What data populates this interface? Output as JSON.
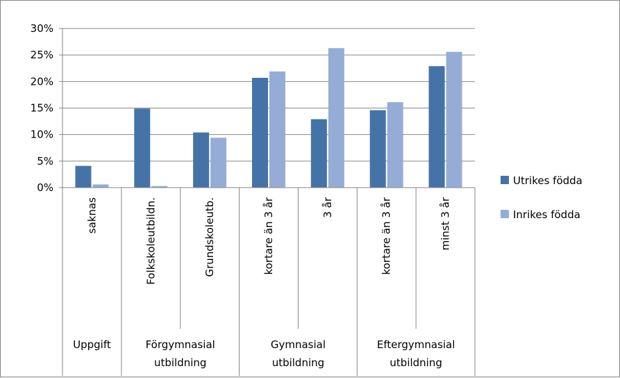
{
  "chart_data": {
    "type": "bar",
    "title": "",
    "xlabel": "",
    "ylabel": "",
    "ylim": [
      0,
      0.3
    ],
    "yticks": [
      "0%",
      "5%",
      "10%",
      "15%",
      "20%",
      "25%",
      "30%"
    ],
    "grid": true,
    "legend_position": "right",
    "categories": [
      "saknas",
      "Folkskoleutbildn.",
      "Grundskoleutb.",
      "kortare än 3 år",
      "3 år",
      "kortare än 3 år",
      "minst 3 år"
    ],
    "groups": [
      {
        "label": [
          "Uppgift"
        ],
        "span": [
          0,
          0
        ]
      },
      {
        "label": [
          "Förgymnasial",
          "utbildning"
        ],
        "span": [
          1,
          2
        ]
      },
      {
        "label": [
          "Gymnasial",
          "utbildning"
        ],
        "span": [
          3,
          4
        ]
      },
      {
        "label": [
          "Eftergymnasial",
          "utbildning"
        ],
        "span": [
          5,
          6
        ]
      }
    ],
    "series": [
      {
        "name": "Utrikes födda",
        "color": "#4573A7",
        "values": [
          0.041,
          0.149,
          0.104,
          0.207,
          0.129,
          0.146,
          0.229
        ]
      },
      {
        "name": "Inrikes födda",
        "color": "#95ADD6",
        "values": [
          0.006,
          0.003,
          0.094,
          0.219,
          0.263,
          0.161,
          0.256
        ]
      }
    ]
  }
}
